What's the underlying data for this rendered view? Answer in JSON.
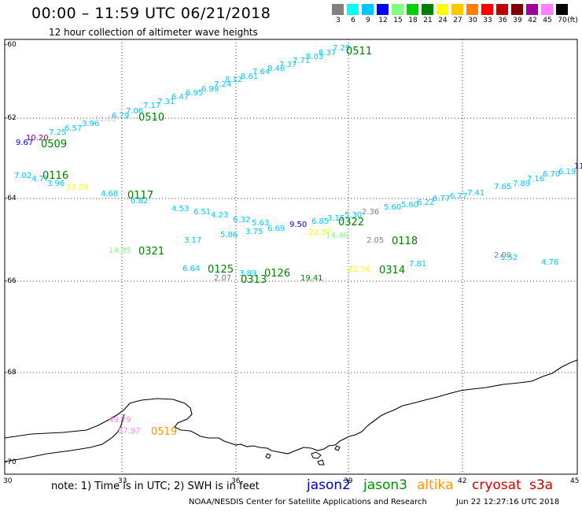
{
  "header": {
    "title": "00:00 – 11:59 UTC 06/21/2018",
    "subtitle": "12 hour collection of altimeter wave heights"
  },
  "color_scale": {
    "unit_label": "(ft)",
    "entries": [
      {
        "label": "3",
        "color": "#808080"
      },
      {
        "label": "6",
        "color": "#00ffff"
      },
      {
        "label": "9",
        "color": "#00c8ff"
      },
      {
        "label": "12",
        "color": "#0000ff"
      },
      {
        "label": "15",
        "color": "#80ff80"
      },
      {
        "label": "18",
        "color": "#00d000"
      },
      {
        "label": "21",
        "color": "#008000"
      },
      {
        "label": "24",
        "color": "#ffff00"
      },
      {
        "label": "27",
        "color": "#ffc800"
      },
      {
        "label": "30",
        "color": "#ff8000"
      },
      {
        "label": "33",
        "color": "#ff0000"
      },
      {
        "label": "36",
        "color": "#c00000"
      },
      {
        "label": "39",
        "color": "#800000"
      },
      {
        "label": "42",
        "color": "#a000a0"
      },
      {
        "label": "45",
        "color": "#ff80ff"
      },
      {
        "label": "70",
        "color": "#000000"
      }
    ]
  },
  "axes": {
    "lat_labels": [
      "-60",
      "-62",
      "-64",
      "-66",
      "-68",
      "-70"
    ],
    "lon_labels": [
      "30",
      "33",
      "36",
      "39",
      "42",
      "45"
    ]
  },
  "footer": {
    "note": "note:  1) Time is in UTC;  2) SWH is in feet",
    "satellites": [
      {
        "name": "jason2",
        "color": "#0000cc"
      },
      {
        "name": "jason3",
        "color": "#009000"
      },
      {
        "name": "altika",
        "color": "#ff9900"
      },
      {
        "name": "cryosat",
        "color": "#dd0000"
      },
      {
        "name": "s3a",
        "color": "#cc0000"
      }
    ],
    "credit": "NOAA/NESDIS Center for Satellite Applications and Research",
    "generated": "Jun 22 12:27:16 UTC 2018"
  },
  "wave_labels": [
    {
      "v": "9.67",
      "c": "#0000ff"
    },
    {
      "v": "10.20",
      "c": "#800080"
    },
    {
      "v": "7.25",
      "c": "#00c8ff"
    },
    {
      "v": "6.57",
      "c": "#00c8ff"
    },
    {
      "v": "3.96",
      "c": "#00c8ff"
    },
    {
      "v": "11.02",
      "c": "#c8c8ff"
    },
    {
      "v": "6.79",
      "c": "#00c8ff"
    },
    {
      "v": "7.06",
      "c": "#00c8ff"
    },
    {
      "v": "7.17",
      "c": "#00c8ff"
    },
    {
      "v": "7.31",
      "c": "#00c8ff"
    },
    {
      "v": "6.47",
      "c": "#00c8ff"
    },
    {
      "v": "6.95",
      "c": "#00c8ff"
    },
    {
      "v": "6.99",
      "c": "#00c8ff"
    },
    {
      "v": "7.24",
      "c": "#00c8ff"
    },
    {
      "v": "8.12",
      "c": "#00c8ff"
    },
    {
      "v": "8.61",
      "c": "#00c8ff"
    },
    {
      "v": "7.64",
      "c": "#00c8ff"
    },
    {
      "v": "8.46",
      "c": "#00c8ff"
    },
    {
      "v": "7.37",
      "c": "#00c8ff"
    },
    {
      "v": "7.71",
      "c": "#00c8ff"
    },
    {
      "v": "8.03",
      "c": "#00c8ff"
    },
    {
      "v": "8.37",
      "c": "#00c8ff"
    },
    {
      "v": "7.29",
      "c": "#00c8ff"
    },
    {
      "v": "7.02",
      "c": "#00c8ff"
    },
    {
      "v": "4.77",
      "c": "#00c8ff"
    },
    {
      "v": "3.96",
      "c": "#00c8ff"
    },
    {
      "v": "23.09",
      "c": "#ffff00"
    },
    {
      "v": "4.68",
      "c": "#00c8ff"
    },
    {
      "v": "6.82",
      "c": "#00c8ff"
    },
    {
      "v": "4.53",
      "c": "#00c8ff"
    },
    {
      "v": "6.51",
      "c": "#00c8ff"
    },
    {
      "v": "4.23",
      "c": "#00c8ff"
    },
    {
      "v": "6.32",
      "c": "#00c8ff"
    },
    {
      "v": "5.63",
      "c": "#00c8ff"
    },
    {
      "v": "3.75",
      "c": "#00c8ff"
    },
    {
      "v": "6.69",
      "c": "#00c8ff"
    },
    {
      "v": "5.86",
      "c": "#00c8ff"
    },
    {
      "v": "9.50",
      "c": "#0000ff"
    },
    {
      "v": "6.85",
      "c": "#00c8ff"
    },
    {
      "v": "23.37",
      "c": "#ffff00"
    },
    {
      "v": "3.15",
      "c": "#00c8ff"
    },
    {
      "v": "14.46",
      "c": "#80ff80"
    },
    {
      "v": "5.30",
      "c": "#00c8ff"
    },
    {
      "v": "2.36",
      "c": "#808080"
    },
    {
      "v": "5.60",
      "c": "#00c8ff"
    },
    {
      "v": "5.60",
      "c": "#00c8ff"
    },
    {
      "v": "6.22",
      "c": "#00c8ff"
    },
    {
      "v": "6.77",
      "c": "#00c8ff"
    },
    {
      "v": "6.77",
      "c": "#00c8ff"
    },
    {
      "v": "7.41",
      "c": "#00c8ff"
    },
    {
      "v": "7.65",
      "c": "#00c8ff"
    },
    {
      "v": "7.89",
      "c": "#00c8ff"
    },
    {
      "v": "7.16",
      "c": "#00c8ff"
    },
    {
      "v": "6.70",
      "c": "#00c8ff"
    },
    {
      "v": "6.19",
      "c": "#00c8ff"
    },
    {
      "v": "11",
      "c": "#0000ff"
    },
    {
      "v": "3.17",
      "c": "#00c8ff"
    },
    {
      "v": "14.85",
      "c": "#80ff80"
    },
    {
      "v": "2.05",
      "c": "#808080"
    },
    {
      "v": "2.00",
      "c": "#808080"
    },
    {
      "v": "5.52",
      "c": "#00c8ff"
    },
    {
      "v": "4.76",
      "c": "#00c8ff"
    },
    {
      "v": "6.64",
      "c": "#00c8ff"
    },
    {
      "v": "2.07",
      "c": "#808080"
    },
    {
      "v": "3.89",
      "c": "#00c8ff"
    },
    {
      "v": "19.41",
      "c": "#008000"
    },
    {
      "v": "22.76",
      "c": "#ffff00"
    },
    {
      "v": "7.81",
      "c": "#00c8ff"
    },
    {
      "v": "49.79",
      "c": "#ff80ff"
    },
    {
      "v": "57.97",
      "c": "#ff80ff"
    }
  ],
  "time_labels": [
    {
      "v": "0509",
      "c": "#008000"
    },
    {
      "v": "0510",
      "c": "#008000"
    },
    {
      "v": "0511",
      "c": "#008000"
    },
    {
      "v": "0116",
      "c": "#008000"
    },
    {
      "v": "0117",
      "c": "#008000"
    },
    {
      "v": "0322",
      "c": "#008000"
    },
    {
      "v": "0321",
      "c": "#008000"
    },
    {
      "v": "0118",
      "c": "#008000"
    },
    {
      "v": "0125",
      "c": "#008000"
    },
    {
      "v": "0313",
      "c": "#008000"
    },
    {
      "v": "0126",
      "c": "#008000"
    },
    {
      "v": "0314",
      "c": "#008000"
    },
    {
      "v": "0519",
      "c": "#ff9900"
    }
  ]
}
